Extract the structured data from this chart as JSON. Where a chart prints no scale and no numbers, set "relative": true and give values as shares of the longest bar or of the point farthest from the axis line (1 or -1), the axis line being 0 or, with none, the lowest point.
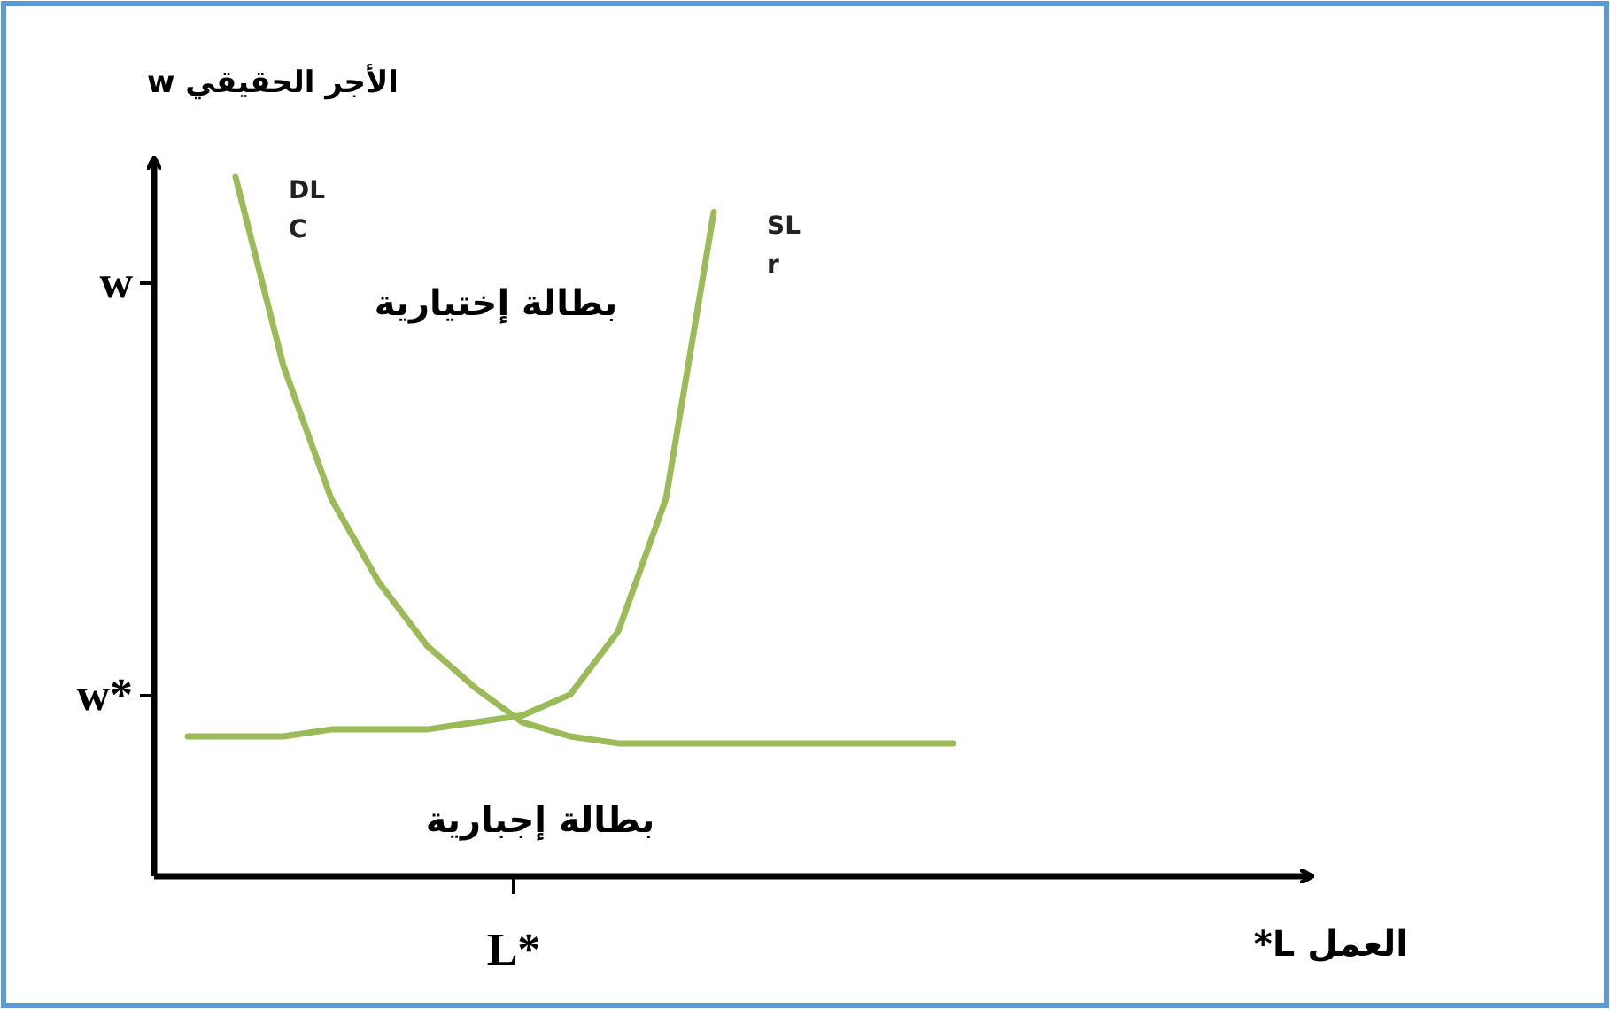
{
  "chart_data": {
    "type": "line",
    "relative": true,
    "ylabel": "الأجر الحقيقي w",
    "legend": false,
    "marker": "none",
    "line_style": "solid",
    "categories": [
      null,
      null,
      null,
      null,
      null,
      null,
      null,
      null,
      null,
      null,
      null,
      null,
      null,
      null,
      null,
      null,
      null
    ],
    "series": [
      {
        "name": "DL C",
        "color": "#9bbb59",
        "values": [
          null,
          1.0,
          0.73,
          0.54,
          0.42,
          0.33,
          0.27,
          0.22,
          0.2,
          0.19,
          0.19,
          0.19,
          0.19,
          0.19,
          0.19,
          0.19,
          0.19
        ]
      },
      {
        "name": "SL r",
        "color": "#9bbb59",
        "values": [
          0.2,
          0.2,
          0.2,
          0.21,
          0.21,
          0.21,
          0.22,
          0.23,
          0.26,
          0.35,
          0.54,
          0.95,
          null,
          null,
          null,
          null,
          null
        ]
      }
    ],
    "annotations": [
      "w",
      "w*",
      "L*",
      "بطالة إختيارية",
      "بطالة إجبارية",
      "العمل L*"
    ]
  }
}
